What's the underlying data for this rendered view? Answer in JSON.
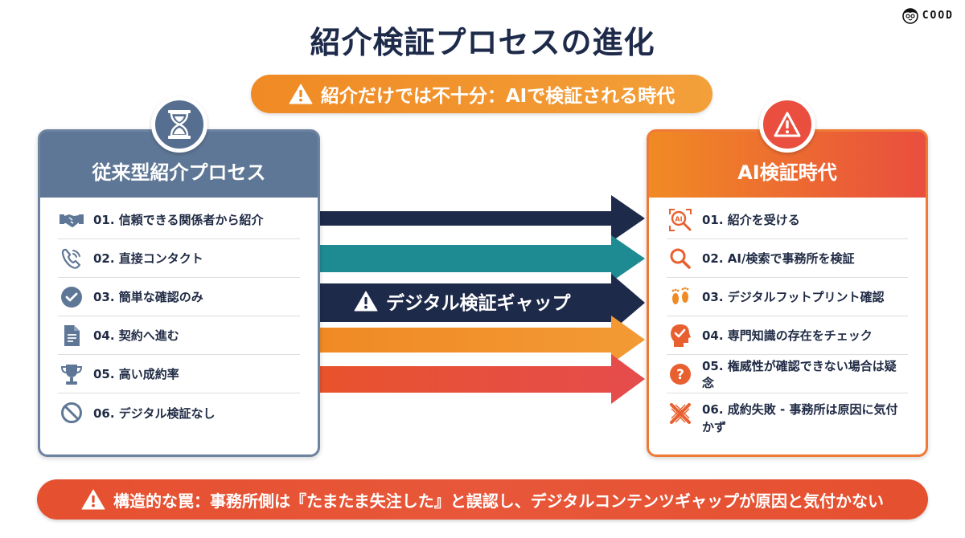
{
  "brand": {
    "logo_text": "COOD"
  },
  "title": "紹介検証プロセスの進化",
  "subtitle": "紹介だけでは不十分：AIで検証される時代",
  "left_panel": {
    "heading": "従来型紹介プロセス",
    "items": [
      {
        "label": "01. 信頼できる関係者から紹介",
        "icon": "handshake-icon"
      },
      {
        "label": "02. 直接コンタクト",
        "icon": "phone-icon"
      },
      {
        "label": "03. 簡単な確認のみ",
        "icon": "check-circle-icon"
      },
      {
        "label": "04. 契約へ進む",
        "icon": "document-icon"
      },
      {
        "label": "05. 高い成約率",
        "icon": "trophy-icon"
      },
      {
        "label": "06. デジタル検証なし",
        "icon": "prohibited-icon"
      }
    ]
  },
  "right_panel": {
    "heading": "AI検証時代",
    "items": [
      {
        "label": "01. 紹介を受ける",
        "icon": "ai-search-icon"
      },
      {
        "label": "02. AI/検索で事務所を検証",
        "icon": "magnifier-icon"
      },
      {
        "label": "03. デジタルフットプリント確認",
        "icon": "footprints-icon"
      },
      {
        "label": "04. 専門知識の存在をチェック",
        "icon": "head-check-icon"
      },
      {
        "label": "05. 権威性が確認できない場合は疑念",
        "icon": "question-icon"
      },
      {
        "label": "06. 成約失敗 - 事務所は原因に気付かず",
        "icon": "failure-x-icon"
      }
    ]
  },
  "gap_label": "デジタル検証ギャップ",
  "bottom_banner": "構造的な罠：事務所側は『たまたま失注した』と誤認し、デジタルコンテンツギャップが原因と気付かない",
  "colors": {
    "navy": "#1e2a4a",
    "teal": "#1e8a92",
    "orange": "#f08a24",
    "red": "#e5502f",
    "slate": "#5f7796"
  }
}
